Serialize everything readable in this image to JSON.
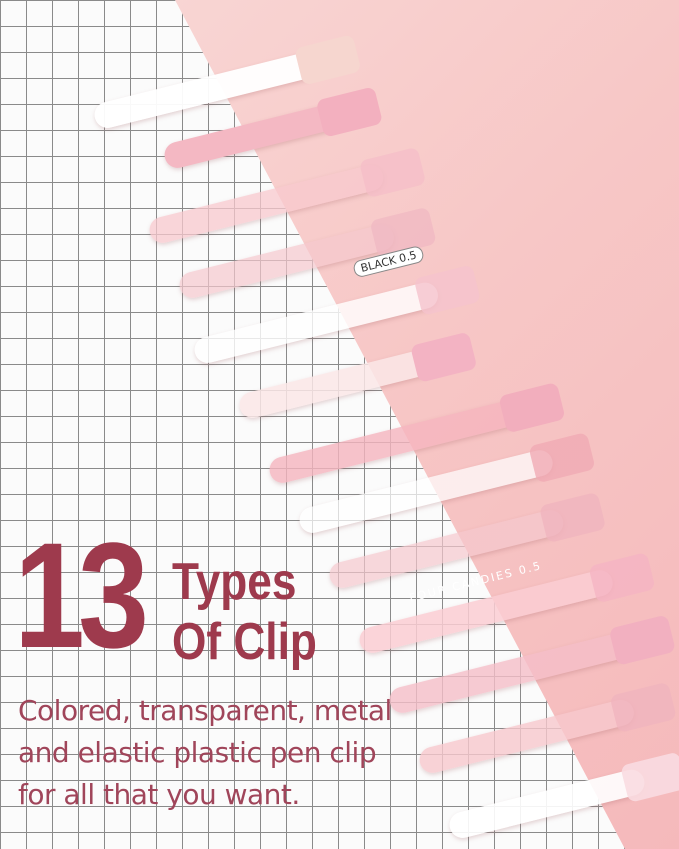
{
  "headline": {
    "number": "13",
    "line1": "Types",
    "line2": "Of Clip"
  },
  "description": [
    "Colored, transparent, metal",
    "and elastic plastic pen clip",
    "for all that you want."
  ],
  "pen_prints": {
    "pen_a": "BLACK 0.5",
    "pen_b": "FOUR CANDIES 0.5"
  },
  "colors": {
    "headline": "#9e3a4d",
    "description": "#a0455a",
    "background": "#f6c9c9",
    "paper": "#fbfbfb"
  }
}
